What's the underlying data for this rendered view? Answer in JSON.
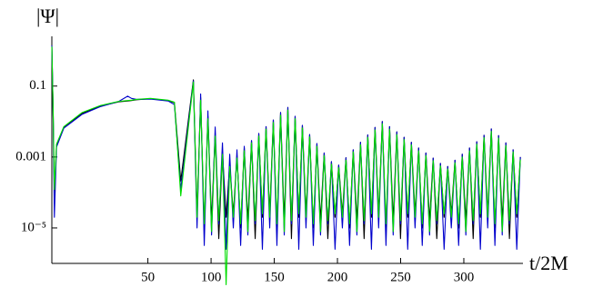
{
  "chart_data": {
    "type": "line",
    "ylabel": "|Ψ|",
    "xlabel": "t/2M",
    "yscale": "log",
    "xlim": [
      -26,
      345
    ],
    "ylim": [
      1e-06,
      1.4
    ],
    "xticks": [
      50,
      100,
      150,
      200,
      250,
      300
    ],
    "yticks": [
      0.1,
      0.001,
      {
        "value": 1e-05,
        "label": "10⁻⁵"
      }
    ],
    "x": [
      -26,
      -25,
      -24,
      -22.3,
      -16.5,
      -2,
      12,
      27,
      34,
      37,
      41,
      52,
      66,
      71,
      76,
      86,
      88.9,
      91.75,
      94.6,
      97.5,
      100.4,
      103.25,
      106.1,
      109,
      111.9,
      114.75,
      117.6,
      120.5,
      123.4,
      126.25,
      129.1,
      132,
      134.9,
      137.75,
      140.6,
      143.5,
      146.4,
      149.25,
      152.1,
      155,
      157.9,
      160.75,
      163.6,
      166.5,
      169.4,
      172.25,
      175.1,
      178,
      180.9,
      183.75,
      186.6,
      189.5,
      192.4,
      195.25,
      198.1,
      201,
      203.9,
      206.75,
      209.6,
      212.5,
      215.4,
      218.25,
      221.1,
      224,
      226.9,
      229.75,
      232.6,
      235.5,
      238.4,
      241.25,
      244.1,
      247,
      249.9,
      252.75,
      255.6,
      258.5,
      261.4,
      264.25,
      267.1,
      270,
      272.9,
      275.75,
      278.6,
      281.5,
      284.4,
      287.25,
      290.1,
      293,
      295.9,
      298.75,
      301.6,
      304.5,
      307.4,
      310.25,
      313.1,
      316,
      318.9,
      321.75,
      324.6,
      327.5,
      330.4,
      333.25,
      336.1,
      339,
      341.9,
      344.75
    ],
    "series": [
      {
        "color": "#000000",
        "values": [
          1.4,
          0.022,
          8e-05,
          0.0021,
          0.0069,
          0.017,
          0.027,
          0.036,
          0.038,
          0.039,
          0.041,
          0.044,
          0.039,
          0.034,
          0.00021,
          0.15,
          2.5e-05,
          0.047,
          1e-05,
          0.014,
          1.6e-05,
          0.0046,
          5e-06,
          0.0014,
          2e-05,
          0.00063,
          2.5e-05,
          0.0011,
          1e-05,
          0.0018,
          1.6e-05,
          0.0029,
          5e-06,
          0.0046,
          2e-05,
          0.0072,
          2.5e-05,
          0.011,
          1e-05,
          0.018,
          1.6e-05,
          0.025,
          5e-06,
          0.014,
          2e-05,
          0.0078,
          2.5e-05,
          0.0043,
          1e-05,
          0.0024,
          1.6e-05,
          0.0013,
          5e-06,
          0.00074,
          2e-05,
          0.00059,
          2.5e-05,
          0.00095,
          1e-05,
          0.0016,
          1.6e-05,
          0.0026,
          5e-06,
          0.0042,
          2e-05,
          0.0068,
          2.5e-05,
          0.01,
          1e-05,
          0.0072,
          1.6e-05,
          0.0051,
          5e-06,
          0.0036,
          2e-05,
          0.0026,
          2.5e-05,
          0.0018,
          1e-05,
          0.0013,
          1.6e-05,
          0.00093,
          5e-06,
          0.00066,
          2e-05,
          0.00054,
          2.5e-05,
          0.00081,
          1e-05,
          0.0012,
          1.6e-05,
          0.0018,
          5e-06,
          0.0027,
          2e-05,
          0.0041,
          2.5e-05,
          0.0062,
          1e-05,
          0.004,
          1.6e-05,
          0.0025,
          5e-06,
          0.0016,
          2e-05,
          0.001
        ]
      },
      {
        "color": "#0000cc",
        "values": [
          1.4,
          0.02,
          2e-05,
          0.0019,
          0.0065,
          0.016,
          0.026,
          0.037,
          0.052,
          0.045,
          0.042,
          0.043,
          0.038,
          0.03,
          0.00012,
          0.14,
          1e-05,
          0.06,
          3.2e-06,
          0.02,
          6.3e-06,
          0.007,
          1.3e-05,
          0.0025,
          2.5e-06,
          0.0012,
          1e-05,
          0.0016,
          3.2e-06,
          0.002,
          6.3e-06,
          0.0029,
          1.3e-05,
          0.0046,
          2.5e-06,
          0.0072,
          1e-05,
          0.011,
          3.2e-06,
          0.018,
          6.3e-06,
          0.025,
          1.3e-05,
          0.014,
          2.5e-06,
          0.0078,
          1e-05,
          0.0043,
          3.2e-06,
          0.0024,
          6.3e-06,
          0.0013,
          1.3e-05,
          0.00074,
          2.5e-06,
          0.00059,
          1e-05,
          0.00095,
          3.2e-06,
          0.0016,
          6.3e-06,
          0.0026,
          1.3e-05,
          0.0042,
          2.5e-06,
          0.0068,
          1e-05,
          0.01,
          3.2e-06,
          0.0072,
          6.3e-06,
          0.0051,
          1.3e-05,
          0.0036,
          2.5e-06,
          0.0026,
          1e-05,
          0.0018,
          3.2e-06,
          0.0013,
          6.3e-06,
          0.00093,
          1.3e-05,
          0.00066,
          2.5e-06,
          0.00054,
          1e-05,
          0.00081,
          3.2e-06,
          0.0012,
          6.3e-06,
          0.0018,
          1.3e-05,
          0.0027,
          2.5e-06,
          0.0041,
          1e-05,
          0.0062,
          3.2e-06,
          0.004,
          6.3e-06,
          0.0025,
          1.3e-05,
          0.0016,
          2.5e-06,
          0.001
        ]
      },
      {
        "color": "#00dd00",
        "values": [
          1.3,
          0.024,
          0.00012,
          0.0023,
          0.0072,
          0.018,
          0.028,
          0.037,
          0.039,
          0.04,
          0.042,
          0.045,
          0.04,
          0.035,
          8e-05,
          0.13,
          2e-05,
          0.04,
          1.3e-05,
          0.012,
          7.9e-06,
          0.0039,
          1.6e-05,
          0.0012,
          2.5e-07,
          0.00054,
          2e-05,
          0.00094,
          1.3e-05,
          0.0015,
          7.9e-06,
          0.0025,
          1.6e-05,
          0.0039,
          2.5e-05,
          0.0061,
          2e-05,
          0.0094,
          1.3e-05,
          0.015,
          7.9e-06,
          0.021,
          1.6e-05,
          0.012,
          2.5e-05,
          0.0066,
          2e-05,
          0.0037,
          1.3e-05,
          0.002,
          7.9e-06,
          0.0011,
          1.6e-05,
          0.00063,
          2.5e-05,
          0.0005,
          2e-05,
          0.00081,
          1.3e-05,
          0.0014,
          7.9e-06,
          0.0022,
          1.6e-05,
          0.0036,
          2.5e-05,
          0.0058,
          2e-05,
          0.0087,
          1.3e-05,
          0.0061,
          7.9e-06,
          0.0043,
          1.6e-05,
          0.0031,
          2.5e-05,
          0.0022,
          2e-05,
          0.0015,
          1.3e-05,
          0.0011,
          7.9e-06,
          0.00079,
          1.6e-05,
          0.00056,
          2.5e-05,
          0.00046,
          2e-05,
          0.00069,
          1.3e-05,
          0.001,
          7.9e-06,
          0.0015,
          1.6e-05,
          0.0023,
          2.5e-05,
          0.0035,
          2e-05,
          0.0053,
          1.3e-05,
          0.0034,
          7.9e-06,
          0.0021,
          1.6e-05,
          0.0014,
          2.5e-05,
          0.00085
        ]
      }
    ]
  }
}
